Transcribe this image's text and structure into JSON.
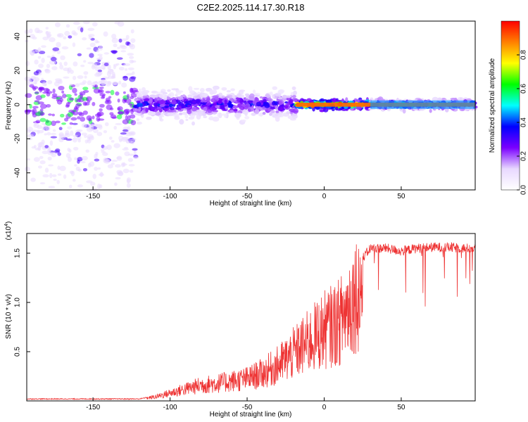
{
  "title": "C2E2.2025.114.17.30.R18",
  "chart_data": [
    {
      "type": "heatmap",
      "title": "C2E2.2025.114.17.30.R18",
      "xlabel": "Height of straight line (km)",
      "ylabel": "Frequency (Hz)",
      "xlim": [
        -193,
        98
      ],
      "ylim": [
        -50,
        49
      ],
      "xticks": [
        -150,
        -100,
        -50,
        0,
        50
      ],
      "yticks": [
        -40,
        -20,
        0,
        20,
        40
      ],
      "colorbar": {
        "label": "Normalized spectral amplitude",
        "range": [
          0,
          1
        ],
        "ticks": [
          0.0,
          0.2,
          0.4,
          0.6,
          0.8
        ],
        "tick_labels": [
          "0.0",
          "0.2",
          "0.4",
          "0.6",
          "0.8"
        ],
        "colormap": [
          "#ffffff",
          "#e8d8ff",
          "#7a00ff",
          "#0000ff",
          "#00ffff",
          "#00ff00",
          "#ffff00",
          "#ff8000",
          "#ff0000"
        ]
      },
      "segments": [
        {
          "x_range": [
            -193,
            -122
          ],
          "freq_center": 0,
          "spread": 45,
          "amplitude": 0.12
        },
        {
          "x_range": [
            -122,
            -18
          ],
          "freq_center": 0,
          "spread": 6,
          "amplitude": 0.35
        },
        {
          "x_range": [
            -18,
            30
          ],
          "freq_center": 0,
          "spread": 2,
          "amplitude": 0.95
        },
        {
          "x_range": [
            30,
            98
          ],
          "freq_center": 0,
          "spread": 2,
          "amplitude": 0.5
        }
      ]
    },
    {
      "type": "line",
      "xlabel": "Height of straight line (km)",
      "ylabel": "SNR (10 * v/v)",
      "y_multiplier": "(x10^4)",
      "xlim": [
        -193,
        98
      ],
      "ylim": [
        0,
        1.7
      ],
      "xticks": [
        -150,
        -100,
        -50,
        0,
        50
      ],
      "yticks": [
        0.5,
        1.0,
        1.5
      ],
      "ytick_labels": [
        "0.5",
        "1.0",
        "1.5"
      ],
      "series": [
        {
          "color": "#ee3333",
          "x": [
            -193,
            -150,
            -120,
            -110,
            -100,
            -90,
            -80,
            -70,
            -60,
            -50,
            -40,
            -30,
            -20,
            -10,
            0,
            5,
            10,
            20,
            30,
            40,
            50,
            60,
            70,
            80,
            90,
            98
          ],
          "y": [
            0.02,
            0.02,
            0.02,
            0.05,
            0.1,
            0.15,
            0.2,
            0.22,
            0.25,
            0.28,
            0.35,
            0.45,
            0.6,
            0.75,
            0.9,
            0.95,
            1.0,
            1.35,
            1.55,
            1.55,
            1.52,
            1.55,
            1.56,
            1.56,
            1.55,
            1.55
          ]
        }
      ]
    }
  ]
}
